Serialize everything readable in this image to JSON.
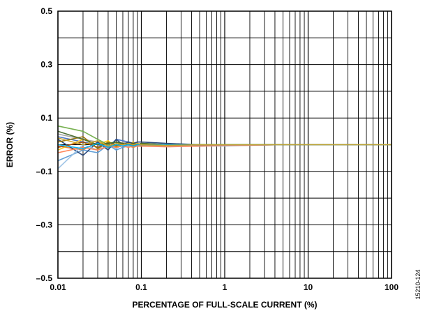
{
  "chart_data": {
    "type": "line",
    "x_scale": "log",
    "xlim": [
      0.01,
      100
    ],
    "ylim": [
      -0.5,
      0.5
    ],
    "xlabel": "PERCENTAGE OF FULL-SCALE CURRENT (%)",
    "ylabel": "ERROR (%)",
    "x_ticks": [
      {
        "value": 0.01,
        "label": "0.01"
      },
      {
        "value": 0.1,
        "label": "0.1"
      },
      {
        "value": 1,
        "label": "1"
      },
      {
        "value": 10,
        "label": "10"
      },
      {
        "value": 100,
        "label": "100"
      }
    ],
    "y_ticks": [
      {
        "value": 0.5,
        "label": "0.5"
      },
      {
        "value": 0.3,
        "label": "0.3"
      },
      {
        "value": 0.1,
        "label": "0.1"
      },
      {
        "value": -0.1,
        "label": "–0.1"
      },
      {
        "value": -0.3,
        "label": "–0.3"
      },
      {
        "value": -0.5,
        "label": "–0.5"
      }
    ],
    "grid": true,
    "x": [
      0.01,
      0.02,
      0.03,
      0.04,
      0.05,
      0.06,
      0.07,
      0.08,
      0.09,
      0.1,
      0.2,
      0.5,
      1,
      2,
      5,
      10,
      20,
      50,
      100
    ],
    "series": [
      {
        "color": "#4472c4",
        "values": [
          0.03,
          0.01,
          0.0,
          -0.01,
          0.02,
          0.015,
          0.01,
          0.005,
          0.0,
          0.005,
          0.0,
          0.0,
          0.0,
          0.0,
          0.0,
          0.0,
          0.0,
          0.0,
          0.0
        ]
      },
      {
        "color": "#ed7d31",
        "values": [
          -0.005,
          -0.02,
          0.01,
          -0.01,
          -0.005,
          0.0,
          -0.005,
          -0.01,
          -0.005,
          -0.005,
          -0.005,
          -0.005,
          -0.003,
          -0.002,
          0.0,
          0.0,
          0.0,
          0.0,
          0.0
        ]
      },
      {
        "color": "#a5a5a5",
        "values": [
          0.04,
          0.02,
          0.01,
          -0.015,
          0.0,
          0.01,
          0.005,
          0.0,
          0.0,
          0.0,
          -0.005,
          -0.005,
          -0.003,
          0.0,
          0.0,
          0.0,
          0.0,
          0.0,
          0.0
        ]
      },
      {
        "color": "#ffc000",
        "values": [
          -0.02,
          0.02,
          0.0,
          0.015,
          -0.01,
          0.005,
          0.0,
          0.01,
          0.0,
          0.005,
          0.0,
          0.0,
          0.0,
          0.0,
          0.0,
          0.0,
          0.0,
          0.0,
          0.0
        ]
      },
      {
        "color": "#5b9bd5",
        "values": [
          -0.06,
          -0.02,
          -0.03,
          0.0,
          -0.02,
          -0.01,
          -0.005,
          -0.005,
          -0.005,
          -0.005,
          -0.005,
          -0.005,
          -0.002,
          0.0,
          0.0,
          0.0,
          0.0,
          0.0,
          0.0
        ]
      },
      {
        "color": "#70ad47",
        "values": [
          0.07,
          0.05,
          0.02,
          0.0,
          0.01,
          0.0,
          0.005,
          0.0,
          0.005,
          0.0,
          0.0,
          0.0,
          0.0,
          0.0,
          0.0,
          0.0,
          0.0,
          0.0,
          0.0
        ]
      },
      {
        "color": "#264478",
        "values": [
          0.02,
          -0.04,
          0.01,
          -0.02,
          0.02,
          0.0,
          0.01,
          0.005,
          0.01,
          0.01,
          0.005,
          0.0,
          0.0,
          0.0,
          0.0,
          0.0,
          0.0,
          0.0,
          0.0
        ]
      },
      {
        "color": "#9e480e",
        "values": [
          -0.01,
          0.01,
          -0.01,
          0.005,
          -0.005,
          0.005,
          -0.005,
          0.0,
          -0.005,
          -0.005,
          -0.005,
          -0.003,
          -0.002,
          0.0,
          0.0,
          0.0,
          0.0,
          0.0,
          0.0
        ]
      },
      {
        "color": "#9dc3e6",
        "values": [
          -0.09,
          0.0,
          -0.02,
          0.01,
          -0.015,
          0.0,
          -0.005,
          -0.005,
          -0.005,
          -0.005,
          -0.005,
          -0.005,
          -0.005,
          -0.002,
          0.0,
          0.0,
          0.0,
          0.0,
          0.0
        ]
      },
      {
        "color": "#997300",
        "values": [
          0.01,
          0.03,
          -0.015,
          0.01,
          -0.005,
          0.005,
          0.0,
          0.0,
          0.0,
          0.0,
          0.0,
          0.0,
          0.0,
          0.0,
          0.0,
          0.0,
          0.0,
          0.0,
          0.0
        ]
      },
      {
        "color": "#43682b",
        "values": [
          0.05,
          0.02,
          0.0,
          0.005,
          0.01,
          0.005,
          0.0,
          0.005,
          0.0,
          0.005,
          0.0,
          0.0,
          0.0,
          0.0,
          0.0,
          0.0,
          0.0,
          0.0,
          0.0
        ]
      },
      {
        "color": "#ff7f50",
        "values": [
          -0.03,
          -0.01,
          -0.02,
          -0.005,
          -0.01,
          -0.005,
          -0.01,
          -0.005,
          -0.005,
          -0.005,
          -0.008,
          -0.005,
          -0.003,
          -0.002,
          0.0,
          0.0,
          0.0,
          0.0,
          0.0
        ]
      },
      {
        "color": "#00b0f0",
        "values": [
          0.0,
          -0.015,
          0.005,
          -0.01,
          0.0,
          -0.005,
          0.0,
          -0.005,
          0.0,
          0.0,
          0.0,
          0.0,
          0.0,
          0.0,
          0.0,
          0.0,
          0.0,
          0.0,
          0.0
        ]
      },
      {
        "color": "#c9a227",
        "values": [
          0.025,
          0.0,
          0.015,
          -0.005,
          0.005,
          0.0,
          0.005,
          0.0,
          0.005,
          0.0,
          -0.003,
          0.0,
          0.0,
          0.0,
          0.0,
          0.0,
          0.0,
          0.0,
          0.0
        ]
      }
    ]
  },
  "figure_id": "15210-124"
}
